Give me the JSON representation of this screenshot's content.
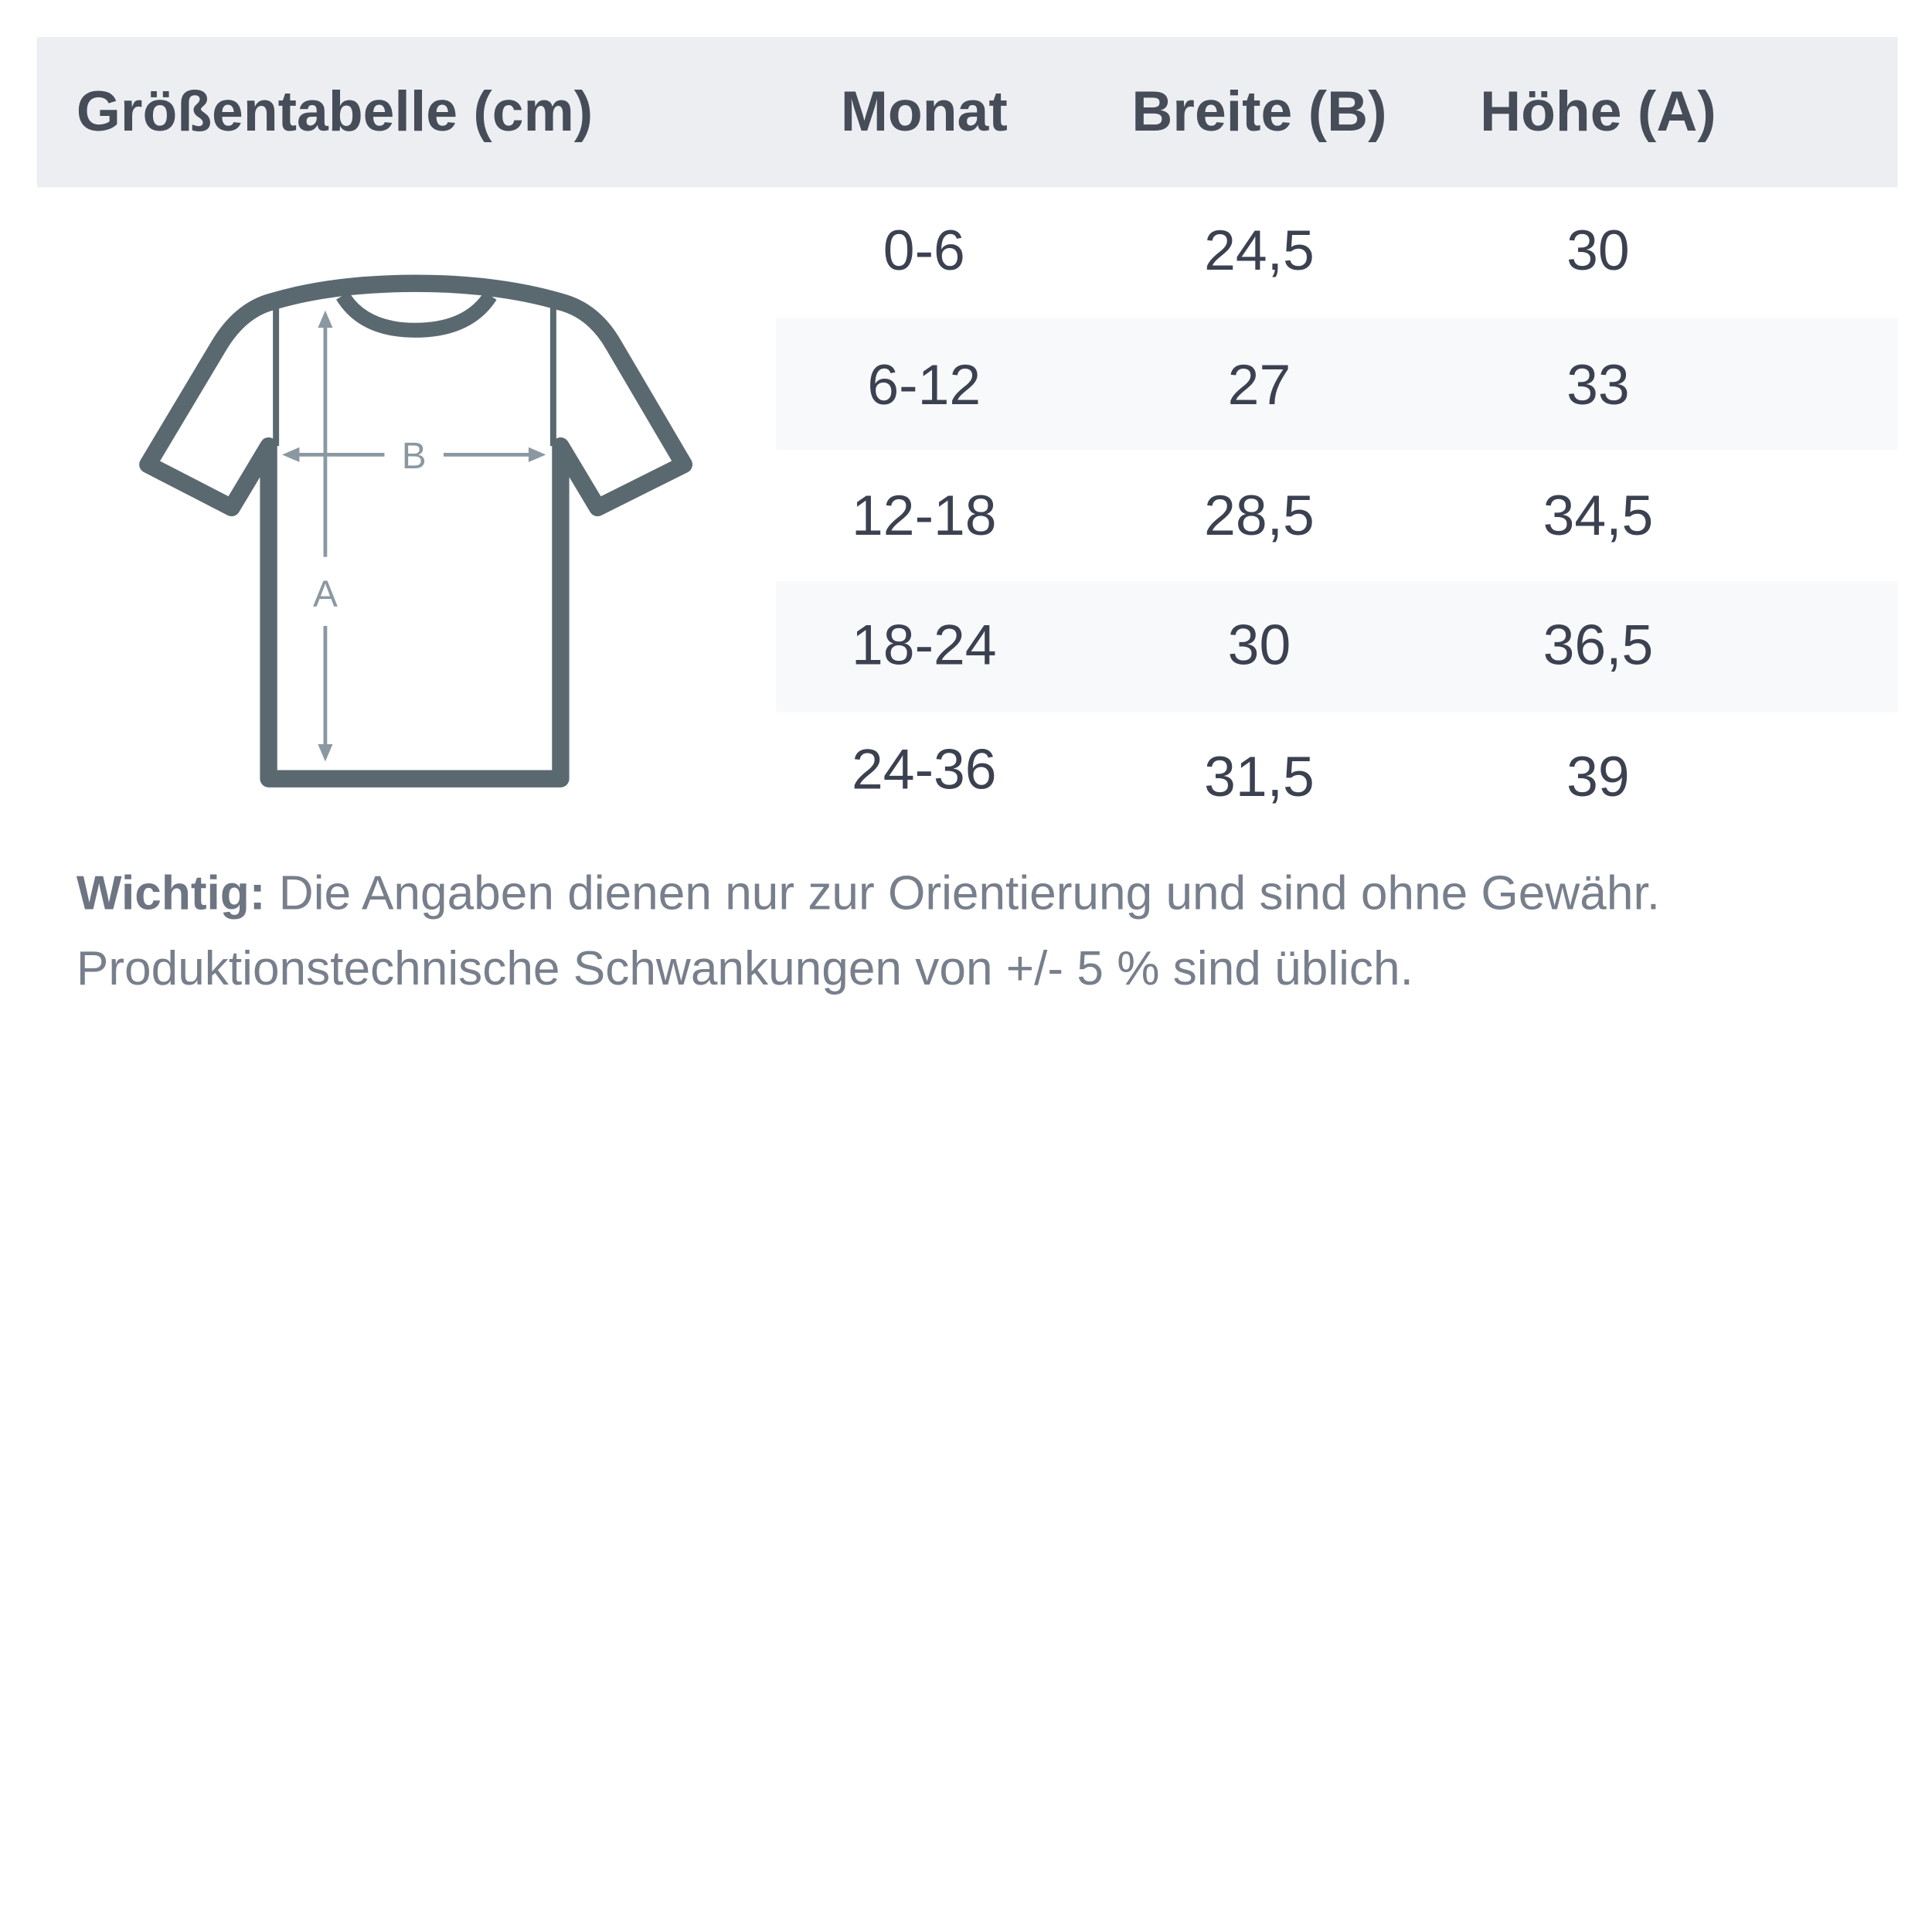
{
  "table": {
    "title": "Größentabelle (cm)",
    "columns": [
      "Monat",
      "Breite (B)",
      "Höhe (A)"
    ],
    "rows": [
      [
        "0-6",
        "24,5",
        "30"
      ],
      [
        "6-12",
        "27",
        "33"
      ],
      [
        "12-18",
        "28,5",
        "34,5"
      ],
      [
        "18-24",
        "30",
        "36,5"
      ],
      [
        "24-36",
        "31,5",
        "39"
      ]
    ]
  },
  "diagram": {
    "icon": "tshirt-measurement-icon",
    "label_width": "B",
    "label_height": "A"
  },
  "note": {
    "bold": "Wichtig:",
    "line1": " Die Angaben dienen nur zur Orientierung und sind ohne Gewähr.",
    "line2": "Produktionstechnische Schwankungen von +/- 5 % sind üblich."
  },
  "colors": {
    "header_bg": "#eceef2",
    "stripe": "#f8f9fb",
    "shirt": "#5a6970",
    "arrow": "#8a98a2"
  }
}
